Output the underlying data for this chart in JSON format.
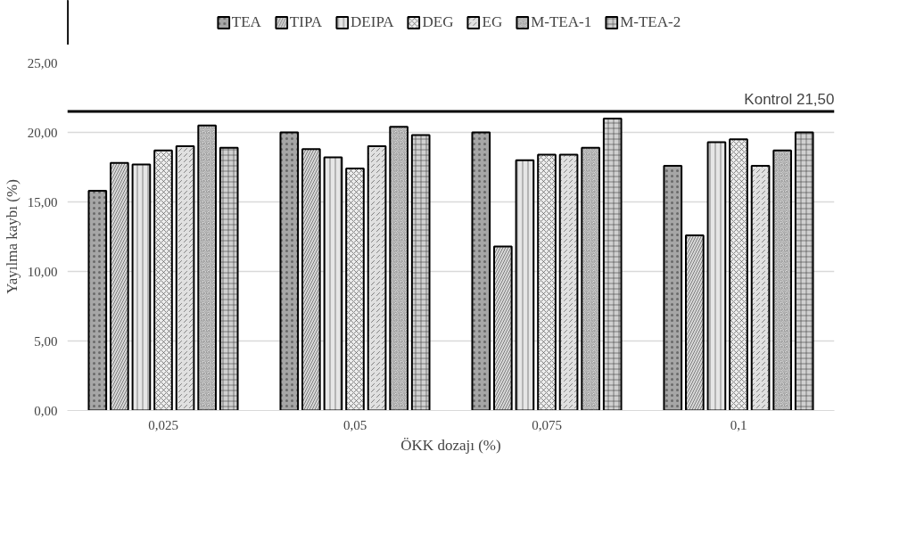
{
  "chart_data": {
    "type": "bar",
    "xlabel": "ÖKK dozajı (%)",
    "ylabel": "Yayılma kaybı (%)",
    "categories": [
      "0,025",
      "0,05",
      "0,075",
      "0,1"
    ],
    "series": [
      {
        "name": "TEA",
        "color": "#a6a6a6",
        "values": [
          15.8,
          20.0,
          20.0,
          17.6
        ]
      },
      {
        "name": "TIPA",
        "color": "#d9d9d9",
        "values": [
          17.8,
          18.8,
          11.8,
          12.6
        ]
      },
      {
        "name": "DEIPA",
        "color": "#e6e6e6",
        "values": [
          17.7,
          18.2,
          18.0,
          19.3
        ]
      },
      {
        "name": "DEG",
        "color": "#ededed",
        "values": [
          18.7,
          17.4,
          18.4,
          19.5
        ]
      },
      {
        "name": "EG",
        "color": "#e0e0e0",
        "values": [
          19.0,
          19.0,
          18.4,
          17.6
        ]
      },
      {
        "name": "M-TEA-1",
        "color": "#f2f2f2",
        "values": [
          20.5,
          20.4,
          18.9,
          18.7
        ]
      },
      {
        "name": "M-TEA-2",
        "color": "#d0d0d0",
        "values": [
          18.9,
          19.8,
          21.0,
          20.0
        ]
      }
    ],
    "ylim": [
      0,
      25
    ],
    "yticks": [
      {
        "value": 0,
        "label": "0,00"
      },
      {
        "value": 5,
        "label": "5,00"
      },
      {
        "value": 10,
        "label": "10,00"
      },
      {
        "value": 15,
        "label": "15,00"
      },
      {
        "value": 20,
        "label": "20,00"
      },
      {
        "value": 25,
        "label": "25,00"
      }
    ],
    "ref_lines": [
      {
        "axis": "y",
        "value": 21.5,
        "label": "Kontrol 21,50",
        "color": "#000000"
      }
    ],
    "grid": "y",
    "legend": "top"
  }
}
